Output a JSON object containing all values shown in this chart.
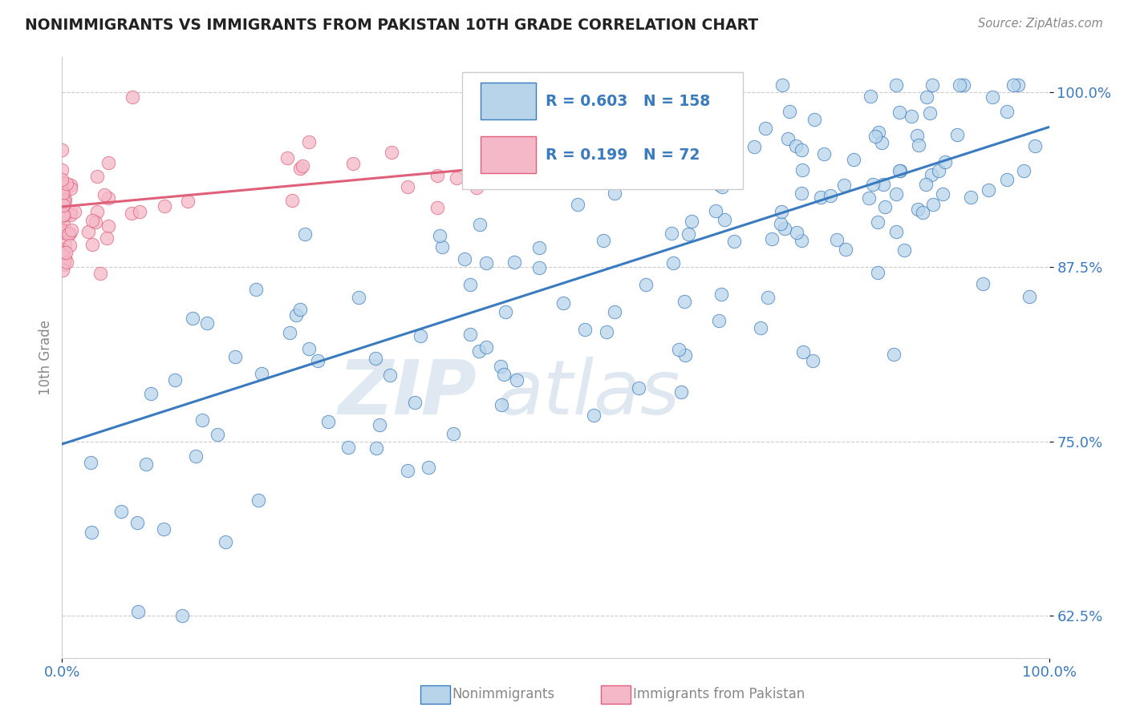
{
  "title": "NONIMMIGRANTS VS IMMIGRANTS FROM PAKISTAN 10TH GRADE CORRELATION CHART",
  "source": "Source: ZipAtlas.com",
  "ylabel": "10th Grade",
  "xlim": [
    0.0,
    1.0
  ],
  "ylim": [
    0.595,
    1.025
  ],
  "yticks": [
    0.625,
    0.75,
    0.875,
    1.0
  ],
  "ytick_labels": [
    "62.5%",
    "75.0%",
    "87.5%",
    "100.0%"
  ],
  "xticks": [
    0.0,
    1.0
  ],
  "xtick_labels": [
    "0.0%",
    "100.0%"
  ],
  "blue_R": 0.603,
  "blue_N": 158,
  "pink_R": 0.199,
  "pink_N": 72,
  "blue_color": "#b8d4ea",
  "blue_line_color": "#3a7bbf",
  "pink_color": "#f5b8c8",
  "pink_line_color": "#e0607a",
  "legend_label_blue": "Nonimmigrants",
  "legend_label_pink": "Immigrants from Pakistan",
  "watermark_zip": "ZIP",
  "watermark_atlas": "atlas",
  "blue_trend_x0": 0.0,
  "blue_trend_y0": 0.748,
  "blue_trend_x1": 1.0,
  "blue_trend_y1": 0.975,
  "pink_trend_x0": 0.0,
  "pink_trend_y0": 0.918,
  "pink_trend_x1": 0.42,
  "pink_trend_y1": 0.945
}
